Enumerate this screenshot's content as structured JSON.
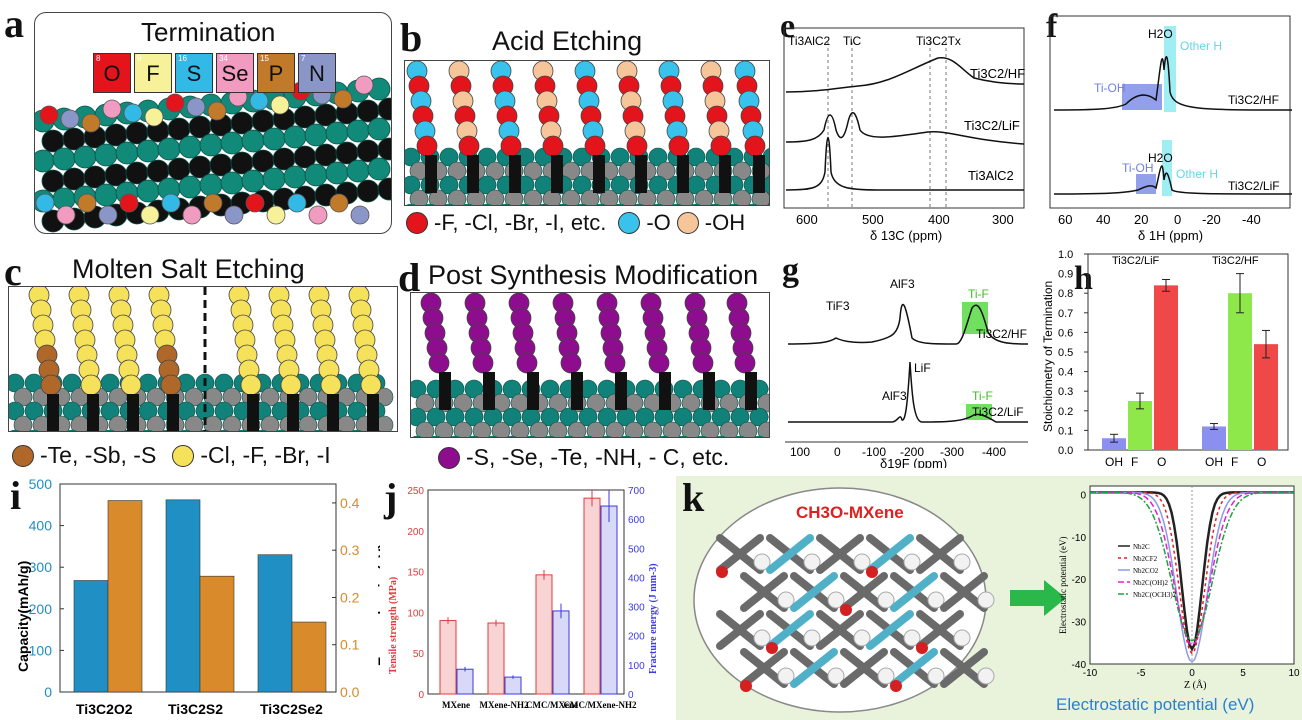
{
  "labels": {
    "a": "a",
    "b": "b",
    "c": "c",
    "d": "d",
    "e": "e",
    "f": "f",
    "g": "g",
    "h": "h",
    "i": "i",
    "j": "j",
    "k": "k"
  },
  "panel_a": {
    "title": "Termination",
    "elements": [
      {
        "num": "8",
        "sym": "O",
        "color": "#e3141b"
      },
      {
        "num": "9",
        "sym": "F",
        "color": "#f7f29a"
      },
      {
        "num": "16",
        "sym": "S",
        "color": "#33b9e6"
      },
      {
        "num": "34",
        "sym": "Se",
        "color": "#f29bc0"
      },
      {
        "num": "15",
        "sym": "P",
        "color": "#c07a2a"
      },
      {
        "num": "7",
        "sym": "N",
        "color": "#8a96c8"
      }
    ]
  },
  "panel_b": {
    "title": "Acid Etching",
    "legend": [
      {
        "text": "-F, -Cl, -Br, -I, etc.",
        "color": "#e3141b"
      },
      {
        "text": "-O",
        "color": "#38c2ec"
      },
      {
        "text": "-OH",
        "color": "#f6c69a"
      }
    ]
  },
  "panel_c": {
    "title": "Molten Salt Etching",
    "legend": [
      {
        "text": "-Te, -Sb, -S",
        "color": "#b0682a"
      },
      {
        "text": "-Cl, -F, -Br, -I",
        "color": "#f5e15a"
      }
    ]
  },
  "panel_d": {
    "title": "Post Synthesis Modification",
    "legend": [
      {
        "text": "-S, -Se, -Te, -NH, - C, etc.",
        "color": "#8e0d8e"
      }
    ]
  },
  "panel_e": {
    "peak_labels": [
      "Ti3AlC2",
      "TiC",
      "Ti3C2Tx"
    ],
    "traces": [
      "Ti3C2/HF",
      "Ti3C2/LiF",
      "Ti3AlC2"
    ],
    "xlabel": "δ 13C (ppm)",
    "xticks": [
      "600",
      "500",
      "400",
      "300"
    ]
  },
  "panel_f": {
    "labels": [
      "H2O",
      "Other H",
      "Ti-OH",
      "Ti3C2/HF",
      "H2O",
      "Ti-OH",
      "Other H",
      "Ti3C2/LiF"
    ],
    "xlabel": "δ 1H (ppm)",
    "xticks": [
      "60",
      "40",
      "20",
      "0",
      "-20",
      "-40"
    ]
  },
  "panel_g": {
    "labels": [
      "TiF3",
      "AlF3",
      "Ti-F",
      "Ti3C2/HF",
      "LiF",
      "AlF3",
      "Ti-F",
      "Ti3C2/LiF"
    ],
    "xlabel": "δ19F (ppm)",
    "xticks": [
      "100",
      "0",
      "-100",
      "-200",
      "-300",
      "-400"
    ]
  },
  "chart_data": [
    {
      "panel": "h",
      "type": "bar",
      "ylabel": "Stoichiometry of Termination",
      "ylim": [
        0,
        1.0
      ],
      "yticks": [
        "0.0",
        "0.1",
        "0.2",
        "0.3",
        "0.4",
        "0.5",
        "0.6",
        "0.7",
        "0.8",
        "0.9",
        "1.0"
      ],
      "groups": [
        {
          "name": "Ti3C2/LiF",
          "categories": [
            "OH",
            "F",
            "O"
          ],
          "values": [
            0.06,
            0.25,
            0.84
          ],
          "errors": [
            0.02,
            0.04,
            0.03
          ]
        },
        {
          "name": "Ti3C2/HF",
          "categories": [
            "OH",
            "F",
            "O"
          ],
          "values": [
            0.12,
            0.8,
            0.54
          ],
          "errors": [
            0.015,
            0.1,
            0.07
          ]
        }
      ],
      "colors": [
        "#8a8ff0",
        "#8ee84a",
        "#f04848"
      ]
    },
    {
      "panel": "i",
      "type": "bar",
      "categories": [
        "Ti3C2O2",
        "Ti3C2S2",
        "Ti3C2Se2"
      ],
      "series": [
        {
          "name": "Capacity(mAh/g)",
          "values": [
            268,
            462,
            330
          ],
          "color": "#1f8fc4",
          "axis": "left"
        },
        {
          "name": "Energy barrier(eV)",
          "values": [
            0.405,
            0.245,
            0.148
          ],
          "color": "#d98a2a",
          "axis": "right"
        }
      ],
      "ylabel": "Capacity(mAh/g)",
      "y2label": "Energy barrier(eV)",
      "ylim": [
        0,
        500
      ],
      "y2lim": [
        0,
        0.44
      ],
      "yticks": [
        "0",
        "100",
        "200",
        "300",
        "400",
        "500"
      ],
      "y2ticks": [
        "0.0",
        "0.1",
        "0.2",
        "0.3",
        "0.4"
      ]
    },
    {
      "panel": "j",
      "type": "bar",
      "categories": [
        "MXene",
        "MXene-NH2",
        "CMC/MXene",
        "CMC/MXene-NH2"
      ],
      "series": [
        {
          "name": "Tensile strength (MPa)",
          "values": [
            90,
            87,
            146,
            240
          ],
          "errors": [
            4,
            4,
            6,
            10
          ],
          "color": "#e23a3a",
          "axis": "left"
        },
        {
          "name": "Fracture energy (J mm-3)",
          "values": [
            85,
            58,
            285,
            645
          ],
          "errors": [
            8,
            6,
            25,
            55
          ],
          "color": "#3a3ae2",
          "axis": "right"
        }
      ],
      "ylabel": "Tensile strength (MPa)",
      "y2label": "Fracture energy (J mm-3)",
      "ylim": [
        0,
        250
      ],
      "y2lim": [
        0,
        700
      ],
      "yticks": [
        "0",
        "50",
        "100",
        "150",
        "200",
        "250"
      ],
      "y2ticks": [
        "0",
        "100",
        "200",
        "300",
        "400",
        "500",
        "600",
        "700"
      ]
    },
    {
      "panel": "k",
      "type": "line",
      "xlabel": "Z (Å)",
      "ylabel": "Electrostatic potential (eV)",
      "xlim": [
        -10,
        10
      ],
      "ylim": [
        -40,
        2
      ],
      "xticks": [
        "-10",
        "-5",
        "0",
        "5",
        "10"
      ],
      "yticks": [
        "0",
        "-10",
        "-20",
        "-30",
        "-40"
      ],
      "series": [
        {
          "name": "Nb2C",
          "color": "#222222",
          "dash": "",
          "width": 2.5,
          "depth": 37
        },
        {
          "name": "Nb2CF2",
          "color": "#e02020",
          "dash": "3,3",
          "width": 1.5,
          "depth": 38
        },
        {
          "name": "Nb2CO2",
          "color": "#8a9ae8",
          "dash": "",
          "width": 1.5,
          "depth": 40
        },
        {
          "name": "Nb2C(OH)2",
          "color": "#e020d0",
          "dash": "6,3",
          "width": 1.5,
          "depth": 36
        },
        {
          "name": "Nb2C(OCH3)2",
          "color": "#20a040",
          "dash": "6,2,2,2",
          "width": 1.5,
          "depth": 35
        }
      ],
      "caption": "Electrostatic potential (eV)",
      "molecule_label": "CH3O-MXene"
    }
  ]
}
